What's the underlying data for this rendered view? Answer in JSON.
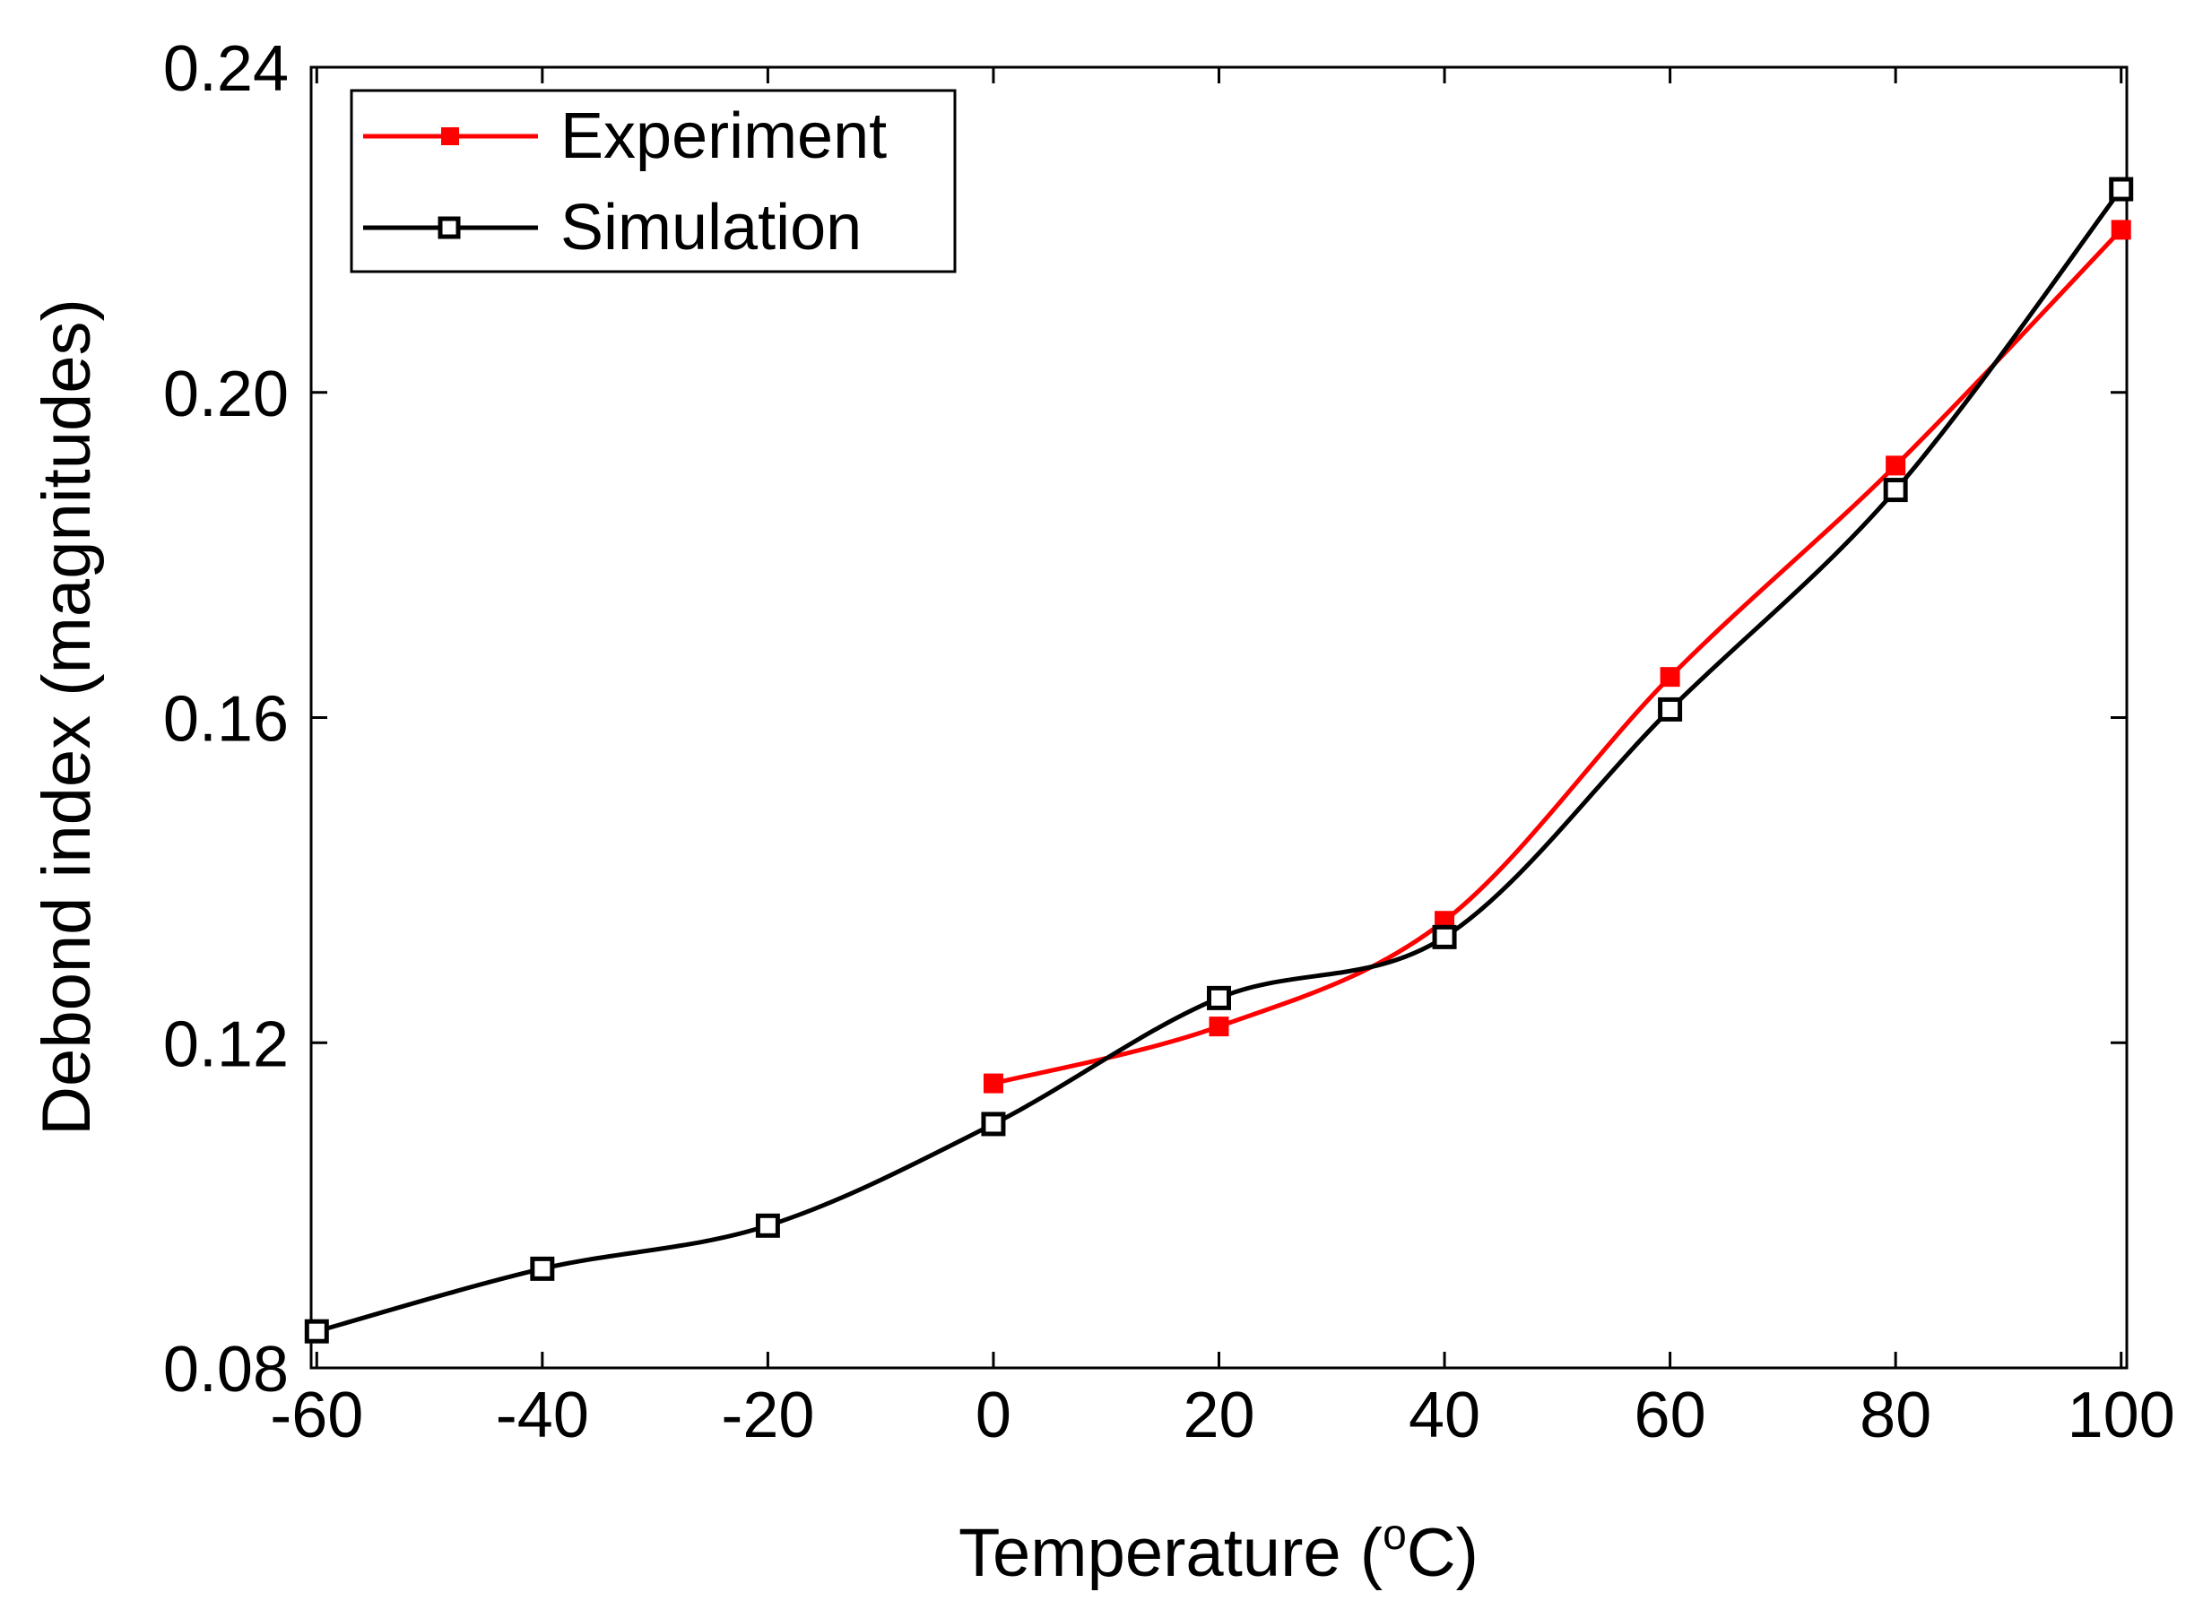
{
  "chart_data": {
    "type": "line",
    "title": "",
    "xlabel": "Temperature (",
    "xlabel_sup": "o",
    "xlabel_tail": "C)",
    "ylabel": "Debond index (magnitudes)",
    "xlim": [
      -60.5,
      100.5
    ],
    "ylim": [
      0.08,
      0.24
    ],
    "xticks": [
      -60,
      -40,
      -20,
      0,
      20,
      40,
      60,
      80,
      100
    ],
    "xtick_labels": [
      "-60",
      "-40",
      "-20",
      "0",
      "20",
      "40",
      "60",
      "80",
      "100"
    ],
    "yticks": [
      0.08,
      0.12,
      0.16,
      0.2,
      0.24
    ],
    "ytick_labels": [
      "0.08",
      "0.12",
      "0.16",
      "0.20",
      "0.24"
    ],
    "legend_position": "top-left",
    "series": [
      {
        "name": "Experiment",
        "color": "#ff0000",
        "marker": "filled-square",
        "x": [
          0,
          20,
          40,
          60,
          80,
          100
        ],
        "y": [
          0.115,
          0.122,
          0.135,
          0.165,
          0.191,
          0.22
        ]
      },
      {
        "name": "Simulation",
        "color": "#000000",
        "marker": "open-square",
        "x": [
          -60,
          -40,
          -20,
          0,
          20,
          40,
          60,
          80,
          100
        ],
        "y": [
          0.0845,
          0.0922,
          0.0975,
          0.11,
          0.1255,
          0.133,
          0.161,
          0.188,
          0.225
        ]
      }
    ]
  }
}
